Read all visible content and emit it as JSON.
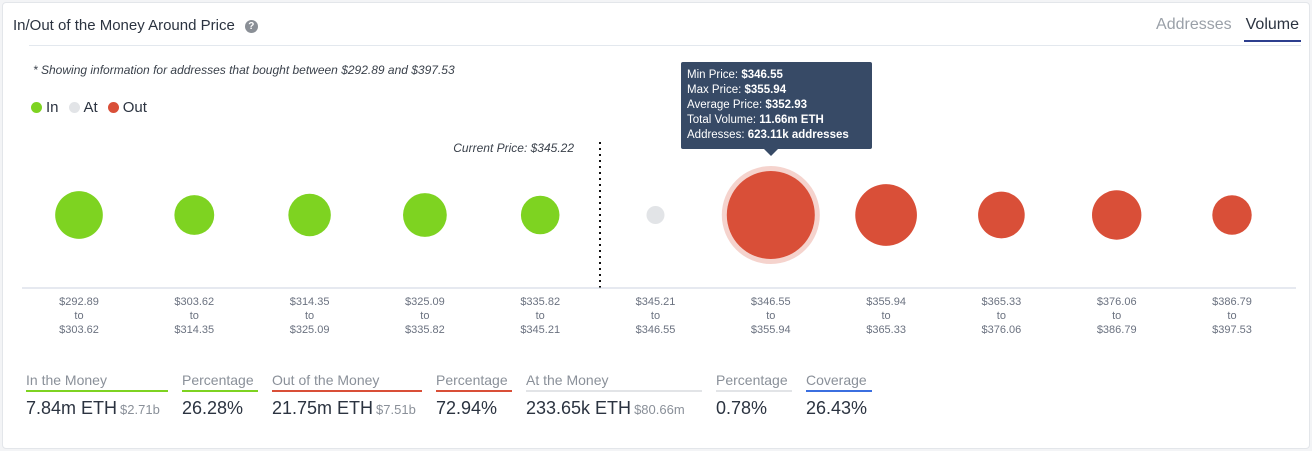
{
  "header": {
    "title": "In/Out of the Money Around Price",
    "help_icon": "question-circle-icon",
    "tabs": [
      {
        "label": "Addresses",
        "active": false
      },
      {
        "label": "Volume",
        "active": true
      }
    ]
  },
  "note": "* Showing information for addresses that bought between $292.89 and $397.53",
  "legend": [
    {
      "label": "In",
      "color": "#7ed321"
    },
    {
      "label": "At",
      "color": "#e2e4e7"
    },
    {
      "label": "Out",
      "color": "#d94f38"
    }
  ],
  "chart_data": {
    "type": "bubble",
    "current_price_label": "Current Price: $345.22",
    "current_price": 345.22,
    "categories": [
      {
        "from": "$292.89",
        "to": "$303.62",
        "status": "in",
        "volume_m_eth": 2.16
      },
      {
        "from": "$303.62",
        "to": "$314.35",
        "status": "in",
        "volume_m_eth": 1.28
      },
      {
        "from": "$314.35",
        "to": "$325.09",
        "status": "in",
        "volume_m_eth": 1.55
      },
      {
        "from": "$325.09",
        "to": "$335.82",
        "status": "in",
        "volume_m_eth": 1.69
      },
      {
        "from": "$335.82",
        "to": "$345.21",
        "status": "in",
        "volume_m_eth": 1.16
      },
      {
        "from": "$345.21",
        "to": "$346.55",
        "status": "at",
        "volume_m_eth": 0.23
      },
      {
        "from": "$346.55",
        "to": "$355.94",
        "status": "out",
        "volume_m_eth": 11.66,
        "highlighted": true
      },
      {
        "from": "$355.94",
        "to": "$365.33",
        "status": "out",
        "volume_m_eth": 4.43
      },
      {
        "from": "$365.33",
        "to": "$376.06",
        "status": "out",
        "volume_m_eth": 2.03
      },
      {
        "from": "$376.06",
        "to": "$386.79",
        "status": "out",
        "volume_m_eth": 2.39
      },
      {
        "from": "$386.79",
        "to": "$397.53",
        "status": "out",
        "volume_m_eth": 1.24
      }
    ],
    "to_word": "to",
    "colors": {
      "in": "#7ed321",
      "at": "#e2e4e7",
      "out": "#d94f38"
    }
  },
  "tooltip": [
    {
      "k": "Min Price: ",
      "v": "$346.55"
    },
    {
      "k": "Max Price: ",
      "v": "$355.94"
    },
    {
      "k": "Average Price: ",
      "v": "$352.93"
    },
    {
      "k": "Total Volume: ",
      "v": "11.66m ETH"
    },
    {
      "k": "Addresses: ",
      "v": "623.11k addresses"
    }
  ],
  "stats": [
    {
      "label": "In the Money",
      "value": "7.84m ETH",
      "sub": "$2.71b",
      "color": "#7ed321"
    },
    {
      "label": "Percentage",
      "value": "26.28%",
      "sub": "",
      "color": "#7ed321"
    },
    {
      "label": "Out of the Money",
      "value": "21.75m ETH",
      "sub": "$7.51b",
      "color": "#d94f38"
    },
    {
      "label": "Percentage",
      "value": "72.94%",
      "sub": "",
      "color": "#d94f38"
    },
    {
      "label": "At the Money",
      "value": "233.65k ETH",
      "sub": "$80.66m",
      "color": "#e2e4e7"
    },
    {
      "label": "Percentage",
      "value": "0.78%",
      "sub": "",
      "color": "#e2e4e7"
    },
    {
      "label": "Coverage",
      "value": "26.43%",
      "sub": "",
      "color": "#3b6fe0"
    }
  ]
}
